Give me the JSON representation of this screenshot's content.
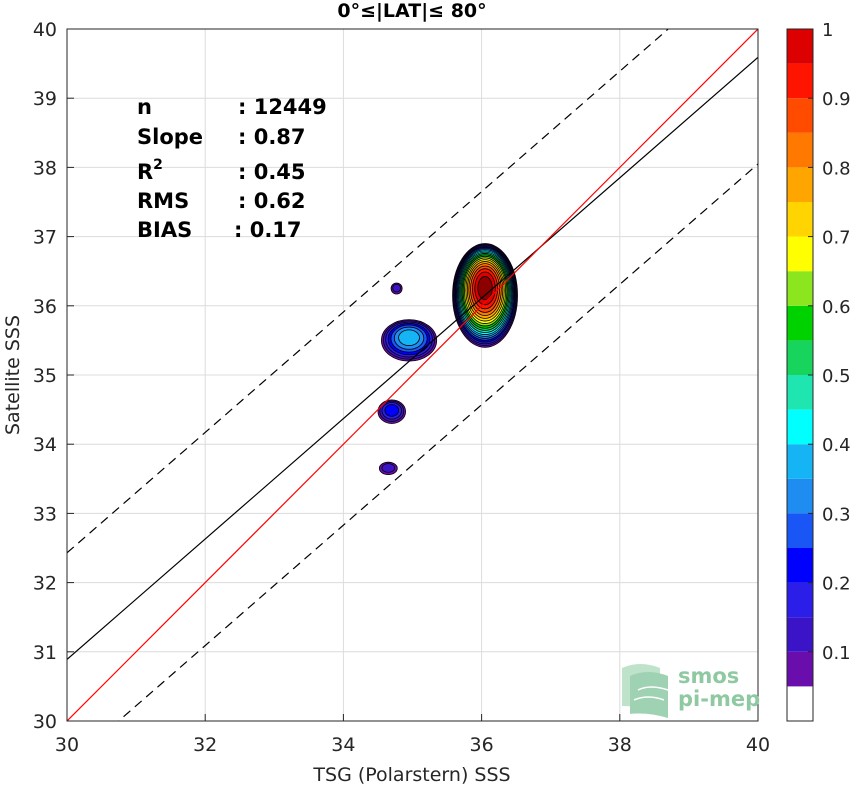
{
  "chart_data": {
    "type": "scatter",
    "title": "0°≤|LAT|≤ 80°",
    "xlabel": "TSG (Polarstern) SSS",
    "ylabel": "Satellite SSS",
    "xlim": [
      30,
      40
    ],
    "ylim": [
      30,
      40
    ],
    "xticks": [
      "30",
      "32",
      "34",
      "36",
      "38",
      "40"
    ],
    "yticks": [
      "30",
      "31",
      "32",
      "33",
      "34",
      "35",
      "36",
      "37",
      "38",
      "39",
      "40"
    ],
    "grid": true,
    "stats": [
      {
        "key": "n",
        "value": ": 12449"
      },
      {
        "key": "Slope",
        "value": ": 0.87"
      },
      {
        "key": "R",
        "sup": "2",
        "value": ": 0.45"
      },
      {
        "key": "RMS",
        "value": ": 0.62"
      },
      {
        "key": "BIAS",
        "value": ": 0.17"
      }
    ],
    "lines": {
      "identity": {
        "color": "#ff0000",
        "x": [
          30,
          40
        ],
        "y": [
          30,
          40
        ]
      },
      "fit": {
        "color": "#000000",
        "slope": 0.87,
        "x": [
          30,
          40
        ],
        "y": [
          30.89,
          39.59
        ]
      },
      "upper_bound": {
        "color": "#000000",
        "style": "dashed",
        "x": [
          30,
          40
        ],
        "y": [
          32.43,
          41.13
        ]
      },
      "lower_bound": {
        "color": "#000000",
        "style": "dashed",
        "x": [
          30,
          40
        ],
        "y": [
          29.35,
          38.05
        ]
      }
    },
    "density_contours": [
      {
        "name": "main-blob",
        "cx": 36.05,
        "cy": 36.15,
        "rx": 0.47,
        "ry": 0.75,
        "peak": 1.0
      },
      {
        "name": "mid-blob",
        "cx": 34.95,
        "cy": 35.5,
        "rx": 0.4,
        "ry": 0.3,
        "peak": 0.35
      },
      {
        "name": "low-blob",
        "cx": 34.7,
        "cy": 34.47,
        "rx": 0.2,
        "ry": 0.17,
        "peak": 0.2
      },
      {
        "name": "top-speck",
        "cx": 34.77,
        "cy": 36.25,
        "rx": 0.08,
        "ry": 0.08,
        "peak": 0.1
      },
      {
        "name": "bottom-speck",
        "cx": 34.65,
        "cy": 33.65,
        "rx": 0.13,
        "ry": 0.09,
        "peak": 0.1
      }
    ],
    "colorbar": {
      "min": 0,
      "max": 1,
      "tick_values": [
        0.1,
        0.2,
        0.3,
        0.4,
        0.5,
        0.6,
        0.7,
        0.8,
        0.9,
        1
      ],
      "tick_labels": [
        "0.1",
        "0.2",
        "0.3",
        "0.4",
        "0.5",
        "0.6",
        "0.7",
        "0.8",
        "0.9",
        "1"
      ],
      "levels": [
        0,
        0.05,
        0.1,
        0.15,
        0.2,
        0.25,
        0.3,
        0.35,
        0.4,
        0.45,
        0.5,
        0.55,
        0.6,
        0.65,
        0.7,
        0.75,
        0.8,
        0.85,
        0.9,
        0.95,
        1.0
      ],
      "colors": [
        "#ffffff",
        "#6a0dad",
        "#3b14c8",
        "#2a1ee8",
        "#0000ff",
        "#1a55f5",
        "#1e8cf0",
        "#14b4f5",
        "#00ffff",
        "#1fe6b0",
        "#17d45c",
        "#00d200",
        "#8ce61e",
        "#ffff00",
        "#ffd400",
        "#ffa500",
        "#ff7800",
        "#ff4b00",
        "#ff1400",
        "#dc0000",
        "#8c0000"
      ]
    }
  },
  "logo": {
    "line1": "smos",
    "line2": "pi-mep"
  }
}
